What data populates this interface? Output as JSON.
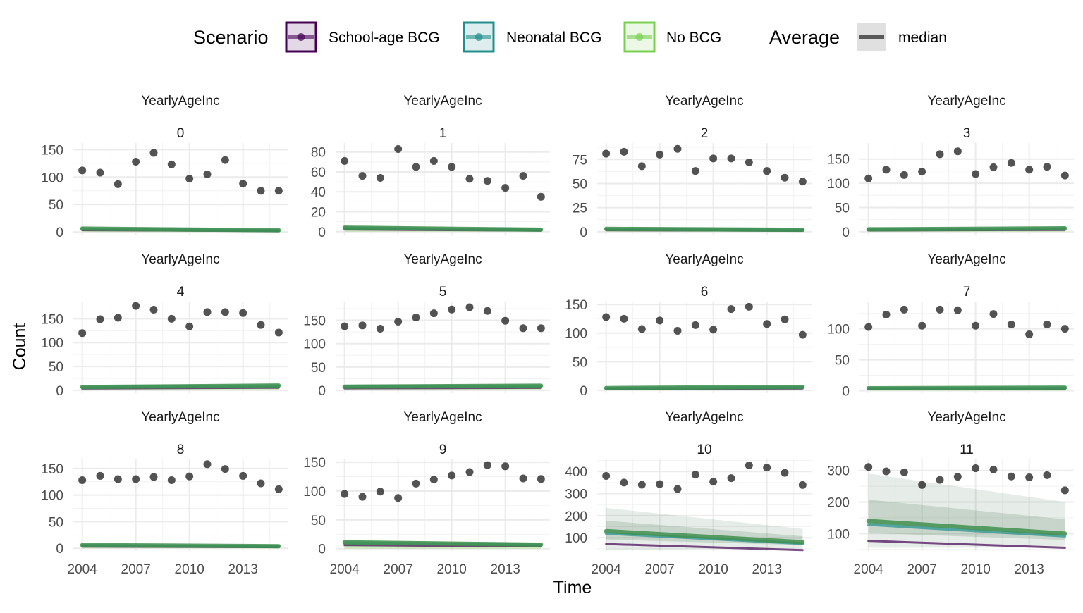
{
  "chart_data": {
    "type": "line",
    "xlabel": "Time",
    "ylabel": "Count",
    "x_ticks": [
      2004,
      2007,
      2010,
      2013
    ],
    "xlim": [
      2003.5,
      2015.5
    ],
    "legend": {
      "placement": "top",
      "scenario_title": "Scenario",
      "scenarios": [
        {
          "name": "School-age BCG",
          "color": "#440154"
        },
        {
          "name": "Neonatal BCG",
          "color": "#21908C"
        },
        {
          "name": "No BCG",
          "color": "#7AD151"
        }
      ],
      "average_title": "Average",
      "average_items": [
        {
          "name": "median",
          "color": "#595959"
        }
      ]
    },
    "panels": [
      {
        "strip": "YearlyAgeInc",
        "label": "0",
        "yticks": [
          0,
          50,
          100,
          150
        ],
        "ylim": [
          -5,
          162
        ],
        "observed": [
          112,
          108,
          87,
          128,
          144,
          123,
          97,
          105,
          131,
          88,
          75,
          75
        ],
        "model_start": 6,
        "model_end": 3,
        "band_start": 9,
        "band_end": 5
      },
      {
        "strip": "YearlyAgeInc",
        "label": "1",
        "yticks": [
          0,
          20,
          40,
          60,
          80
        ],
        "ylim": [
          -3,
          89
        ],
        "observed": [
          71,
          56,
          54,
          83,
          65,
          71,
          65,
          53,
          51,
          44,
          56,
          35
        ],
        "model_start": 4,
        "model_end": 2,
        "band_start": 6,
        "band_end": 3
      },
      {
        "strip": "YearlyAgeInc",
        "label": "2",
        "yticks": [
          0,
          25,
          50,
          75
        ],
        "ylim": [
          -3,
          92
        ],
        "observed": [
          81,
          83,
          68,
          80,
          86,
          63,
          76,
          76,
          72,
          63,
          56,
          52
        ],
        "model_start": 3,
        "model_end": 2,
        "band_start": 5,
        "band_end": 3
      },
      {
        "strip": "YearlyAgeInc",
        "label": "3",
        "yticks": [
          0,
          50,
          100,
          150
        ],
        "ylim": [
          -6,
          183
        ],
        "observed": [
          110,
          128,
          117,
          124,
          160,
          166,
          119,
          133,
          142,
          128,
          134,
          116
        ],
        "model_start": 5,
        "model_end": 7,
        "band_start": 8,
        "band_end": 10
      },
      {
        "strip": "YearlyAgeInc",
        "label": "4",
        "yticks": [
          0,
          50,
          100,
          150
        ],
        "ylim": [
          -6,
          186
        ],
        "observed": [
          120,
          149,
          152,
          177,
          169,
          150,
          134,
          164,
          164,
          162,
          137,
          121
        ],
        "model_start": 7,
        "model_end": 10,
        "band_start": 10,
        "band_end": 14
      },
      {
        "strip": "YearlyAgeInc",
        "label": "5",
        "yticks": [
          0,
          50,
          100,
          150
        ],
        "ylim": [
          -6,
          190
        ],
        "observed": [
          137,
          139,
          132,
          147,
          156,
          165,
          173,
          178,
          170,
          149,
          133,
          133
        ],
        "model_start": 8,
        "model_end": 10,
        "band_start": 11,
        "band_end": 14
      },
      {
        "strip": "YearlyAgeInc",
        "label": "6",
        "yticks": [
          0,
          50,
          100,
          150
        ],
        "ylim": [
          -5,
          155
        ],
        "observed": [
          128,
          125,
          107,
          122,
          104,
          114,
          106,
          142,
          146,
          116,
          124,
          97
        ],
        "model_start": 4,
        "model_end": 6,
        "band_start": 6,
        "band_end": 8
      },
      {
        "strip": "YearlyAgeInc",
        "label": "7",
        "yticks": [
          0,
          50,
          100
        ],
        "ylim": [
          -4,
          144
        ],
        "observed": [
          103,
          123,
          131,
          105,
          131,
          130,
          105,
          124,
          107,
          91,
          107,
          100
        ],
        "model_start": 4,
        "model_end": 5,
        "band_start": 6,
        "band_end": 7
      },
      {
        "strip": "YearlyAgeInc",
        "label": "8",
        "yticks": [
          0,
          50,
          100,
          150
        ],
        "ylim": [
          -5,
          167
        ],
        "observed": [
          128,
          136,
          130,
          130,
          134,
          128,
          135,
          158,
          149,
          136,
          122,
          111
        ],
        "model_start": 6,
        "model_end": 4,
        "band_start": 8,
        "band_end": 6
      },
      {
        "strip": "YearlyAgeInc",
        "label": "9",
        "yticks": [
          0,
          50,
          100,
          150
        ],
        "ylim": [
          -4,
          155
        ],
        "observed": [
          95,
          90,
          99,
          88,
          113,
          120,
          127,
          133,
          145,
          143,
          122,
          121
        ],
        "model_start": 11,
        "model_end": 7,
        "band_start": 15,
        "band_end": 10
      },
      {
        "strip": "YearlyAgeInc",
        "label": "10",
        "yticks": [
          100,
          200,
          300,
          400
        ],
        "ylim": [
          40,
          455
        ],
        "observed": [
          380,
          350,
          340,
          343,
          321,
          386,
          354,
          370,
          428,
          418,
          394,
          339
        ],
        "model_start": 130,
        "model_end": 80,
        "band_lo_start": 45,
        "band_lo_end": 50,
        "band_hi_start": 235,
        "band_hi_end": 140
      },
      {
        "strip": "YearlyAgeInc",
        "label": "11",
        "yticks": [
          100,
          200,
          300
        ],
        "ylim": [
          45,
          335
        ],
        "observed": [
          311,
          297,
          294,
          254,
          270,
          280,
          307,
          303,
          281,
          278,
          285,
          237
        ],
        "model_start": 140,
        "model_end": 100,
        "band_lo_start": 55,
        "band_lo_end": 55,
        "band_hi_start": 290,
        "band_hi_end": 200
      }
    ]
  }
}
